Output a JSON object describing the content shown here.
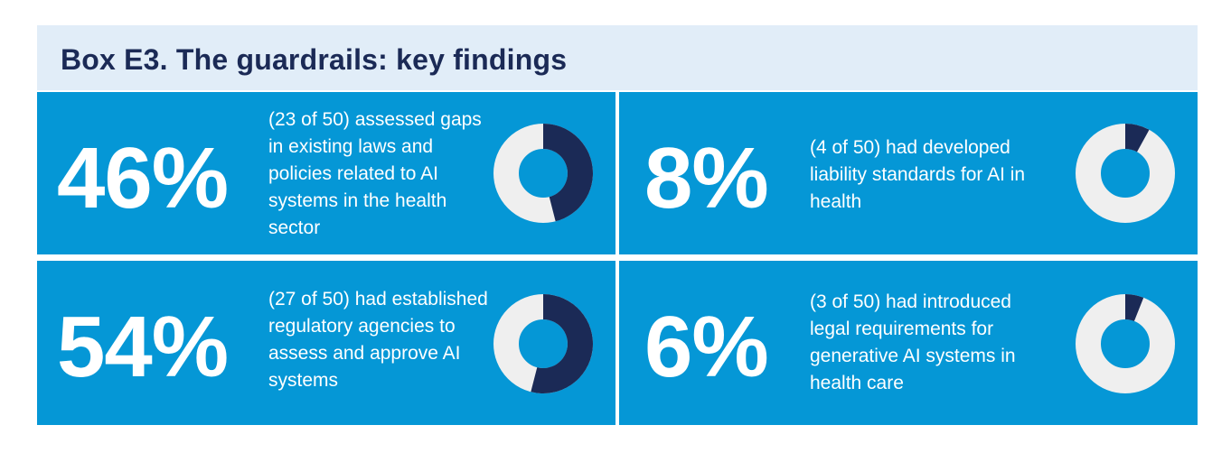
{
  "title": "Box E3. The guardrails: key findings",
  "colors": {
    "panel": "#0597d6",
    "header_bg": "#e1edf8",
    "title": "#1b2a56",
    "donut_filled": "#1b2a56",
    "donut_rest": "#efefef"
  },
  "chart_data": [
    {
      "type": "pie",
      "value_label": "46%",
      "percent": 46,
      "description": "(23 of 50) assessed gaps in existing laws and policies related to AI systems in the health sector"
    },
    {
      "type": "pie",
      "value_label": "8%",
      "percent": 8,
      "description": "(4 of 50) had developed liability standards for AI in health"
    },
    {
      "type": "pie",
      "value_label": "54%",
      "percent": 54,
      "description": "(27 of 50) had established regulatory agencies to assess and approve AI systems"
    },
    {
      "type": "pie",
      "value_label": "6%",
      "percent": 6,
      "description": "(3 of 50) had introduced legal requirements for generative AI systems in health care"
    }
  ]
}
